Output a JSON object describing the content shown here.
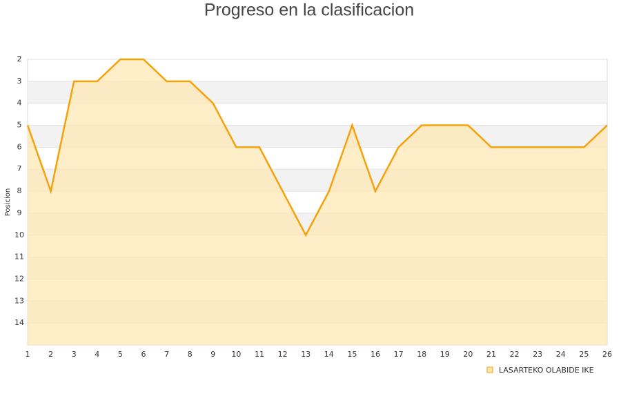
{
  "chart_data": {
    "type": "area",
    "title": "Progreso en la clasificacion",
    "y_label": "Posicion",
    "x": [
      1,
      2,
      3,
      4,
      5,
      6,
      7,
      8,
      9,
      10,
      11,
      12,
      13,
      14,
      15,
      16,
      17,
      18,
      19,
      20,
      21,
      22,
      23,
      24,
      25,
      26
    ],
    "series": [
      {
        "name": "LASARTEKO OLABIDE IKE",
        "color": "#f5a20a",
        "fill": "#ffe7b0",
        "values": [
          5,
          8,
          3,
          3,
          2,
          2,
          3,
          3,
          4,
          6,
          6,
          8,
          10,
          8,
          5,
          8,
          6,
          5,
          5,
          5,
          6,
          6,
          6,
          6,
          6,
          5
        ]
      }
    ],
    "xlim": [
      1,
      26
    ],
    "xticks": [
      1,
      2,
      3,
      4,
      5,
      6,
      7,
      8,
      9,
      10,
      11,
      12,
      13,
      14,
      15,
      16,
      17,
      18,
      19,
      20,
      21,
      22,
      23,
      24,
      25,
      26
    ],
    "ylim": [
      2,
      15
    ],
    "yticks": [
      2,
      3,
      4,
      5,
      6,
      7,
      8,
      9,
      10,
      11,
      12,
      13,
      14
    ],
    "y_inverted": true,
    "grid": true,
    "stripes": true,
    "legend": "bottom-right"
  }
}
